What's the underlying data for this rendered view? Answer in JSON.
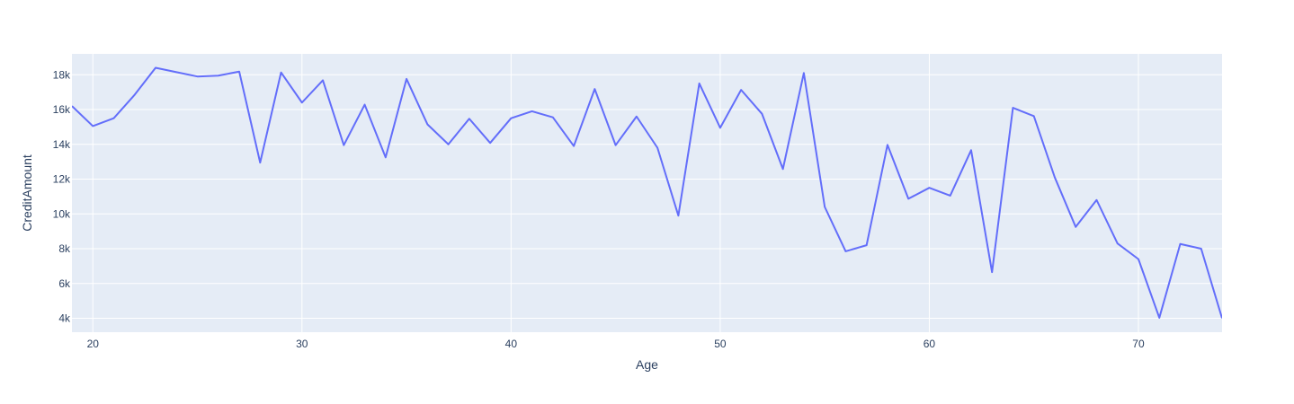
{
  "chart_data": {
    "type": "line",
    "title": "",
    "xlabel": "Age",
    "ylabel": "CreditAmount",
    "xlim": [
      19,
      74
    ],
    "ylim": [
      3200,
      19200
    ],
    "x_ticks": [
      20,
      30,
      40,
      50,
      60,
      70
    ],
    "y_ticks": [
      4000,
      6000,
      8000,
      10000,
      12000,
      14000,
      16000,
      18000
    ],
    "y_tick_labels": [
      "4k",
      "6k",
      "8k",
      "10k",
      "12k",
      "14k",
      "16k",
      "18k"
    ],
    "grid": true,
    "colors": {
      "plot_bg": "#e5ecf6",
      "grid": "#ffffff",
      "line": "#636efa",
      "text": "#2a3f5f"
    },
    "series": [
      {
        "x": [
          19,
          20,
          21,
          22,
          23,
          24,
          25,
          26,
          27,
          28,
          29,
          30,
          31,
          32,
          33,
          34,
          35,
          36,
          37,
          38,
          39,
          40,
          41,
          42,
          43,
          44,
          45,
          46,
          47,
          48,
          49,
          50,
          51,
          52,
          53,
          54,
          55,
          56,
          57,
          58,
          59,
          60,
          61,
          62,
          63,
          64,
          65,
          66,
          67,
          68,
          69,
          70,
          71,
          72,
          73,
          74
        ],
        "values": [
          16200,
          15050,
          15500,
          16850,
          18400,
          18150,
          17900,
          17950,
          18180,
          12950,
          18130,
          16400,
          17680,
          13950,
          16280,
          13250,
          17760,
          15150,
          14000,
          15470,
          14080,
          15500,
          15900,
          15550,
          13900,
          17180,
          13950,
          15600,
          13800,
          9900,
          17500,
          14950,
          17130,
          15750,
          12580,
          18100,
          10400,
          7850,
          8200,
          13970,
          10870,
          11500,
          11050,
          13660,
          6650,
          16100,
          15620,
          12100,
          9250,
          10800,
          8300,
          7400,
          4030,
          8270,
          8000,
          4000
        ]
      }
    ]
  }
}
